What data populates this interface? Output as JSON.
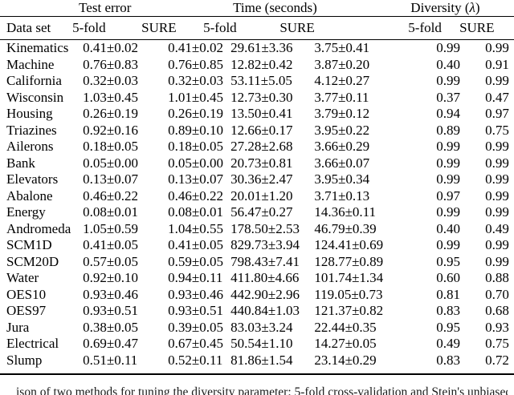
{
  "colors": {
    "background": "#ffffff",
    "text": "#000000",
    "rule": "#000000"
  },
  "table": {
    "groups": {
      "test_error": "Test error",
      "time": "Time (seconds)",
      "diversity_prefix": "Diversity (",
      "diversity_symbol": "λ",
      "diversity_suffix": ")"
    },
    "columns": {
      "dataset": "Data set",
      "test_5fold": "5-fold",
      "test_sure": "SURE",
      "time_5fold": "5-fold",
      "time_sure": "SURE",
      "div_5fold": "5-fold",
      "div_sure": "SURE"
    },
    "rows": [
      [
        "Kinematics",
        "0.41±0.02",
        "0.41±0.02",
        "29.61±3.36",
        "3.75±0.41",
        "0.99",
        "0.99"
      ],
      [
        "Machine",
        "0.76±0.83",
        "0.76±0.85",
        "12.82±0.42",
        "3.87±0.20",
        "0.40",
        "0.91"
      ],
      [
        "California",
        "0.32±0.03",
        "0.32±0.03",
        "53.11±5.05",
        "4.12±0.27",
        "0.99",
        "0.99"
      ],
      [
        "Wisconsin",
        "1.03±0.45",
        "1.01±0.45",
        "12.73±0.30",
        "3.77±0.11",
        "0.37",
        "0.47"
      ],
      [
        "Housing",
        "0.26±0.19",
        "0.26±0.19",
        "13.50±0.41",
        "3.79±0.12",
        "0.94",
        "0.97"
      ],
      [
        "Triazines",
        "0.92±0.16",
        "0.89±0.10",
        "12.66±0.17",
        "3.95±0.22",
        "0.89",
        "0.75"
      ],
      [
        "Ailerons",
        "0.18±0.05",
        "0.18±0.05",
        "27.28±2.68",
        "3.66±0.29",
        "0.99",
        "0.99"
      ],
      [
        "Bank",
        "0.05±0.00",
        "0.05±0.00",
        "20.73±0.81",
        "3.66±0.07",
        "0.99",
        "0.99"
      ],
      [
        "Elevators",
        "0.13±0.07",
        "0.13±0.07",
        "30.36±2.47",
        "3.95±0.34",
        "0.99",
        "0.99"
      ],
      [
        "Abalone",
        "0.46±0.22",
        "0.46±0.22",
        "20.01±1.20",
        "3.71±0.13",
        "0.97",
        "0.99"
      ],
      [
        "Energy",
        "0.08±0.01",
        "0.08±0.01",
        "56.47±0.27",
        "14.36±0.11",
        "0.99",
        "0.99"
      ],
      [
        "Andromeda",
        "1.05±0.59",
        "1.04±0.55",
        "178.50±2.53",
        "46.79±0.39",
        "0.40",
        "0.49"
      ],
      [
        "SCM1D",
        "0.41±0.05",
        "0.41±0.05",
        "829.73±3.94",
        "124.41±0.69",
        "0.99",
        "0.99"
      ],
      [
        "SCM20D",
        "0.57±0.05",
        "0.59±0.05",
        "798.43±7.41",
        "128.77±0.89",
        "0.95",
        "0.99"
      ],
      [
        "Water",
        "0.92±0.10",
        "0.94±0.11",
        "411.80±4.66",
        "101.74±1.34",
        "0.60",
        "0.88"
      ],
      [
        "OES10",
        "0.93±0.46",
        "0.93±0.46",
        "442.90±2.96",
        "119.05±0.73",
        "0.81",
        "0.70"
      ],
      [
        "OES97",
        "0.93±0.51",
        "0.93±0.51",
        "440.84±1.03",
        "121.37±0.82",
        "0.83",
        "0.68"
      ],
      [
        "Jura",
        "0.38±0.05",
        "0.39±0.05",
        "83.03±3.24",
        "22.44±0.35",
        "0.95",
        "0.93"
      ],
      [
        "Electrical",
        "0.69±0.47",
        "0.67±0.45",
        "50.54±1.10",
        "14.27±0.05",
        "0.49",
        "0.75"
      ],
      [
        "Slump",
        "0.51±0.11",
        "0.52±0.11",
        "81.86±1.54",
        "23.14±0.29",
        "0.83",
        "0.72"
      ]
    ]
  },
  "caption_fragment": "ison of two methods for tuning the diversity parameter: 5-fold cross-validation and Stein's unbiased risk esti"
}
